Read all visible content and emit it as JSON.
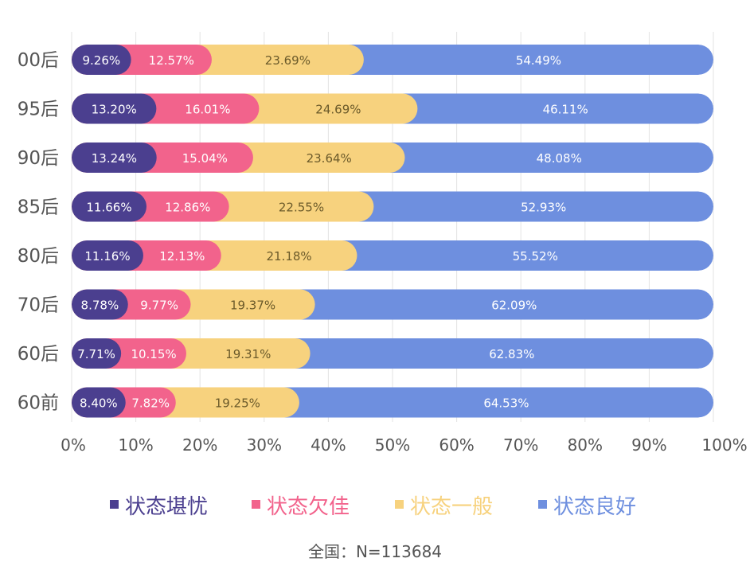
{
  "chart_data": {
    "type": "bar",
    "orientation": "horizontal",
    "stacked": true,
    "percent_stacked": true,
    "categories": [
      "00后",
      "95后",
      "90后",
      "85后",
      "80后",
      "70后",
      "60后",
      "60前"
    ],
    "series": [
      {
        "name": "状态堪忧",
        "color": "#4b3f8f",
        "values": [
          9.26,
          13.2,
          13.24,
          11.66,
          11.16,
          8.78,
          7.71,
          8.4
        ],
        "labels": [
          "9.26%",
          "13.20%",
          "13.24%",
          "11.66%",
          "11.16%",
          "8.78%",
          "7.71%",
          "8.40%"
        ]
      },
      {
        "name": "状态欠佳",
        "color": "#f2638c",
        "values": [
          12.57,
          16.01,
          15.04,
          12.86,
          12.13,
          9.77,
          10.15,
          7.82
        ],
        "labels": [
          "12.57%",
          "16.01%",
          "15.04%",
          "12.86%",
          "12.13%",
          "9.77%",
          "10.15%",
          "7.82%"
        ]
      },
      {
        "name": "状态一般",
        "color": "#f7d27e",
        "values": [
          23.69,
          24.69,
          23.64,
          22.55,
          21.18,
          19.37,
          19.31,
          19.25
        ],
        "labels": [
          "23.69%",
          "24.69%",
          "23.64%",
          "22.55%",
          "21.18%",
          "19.37%",
          "19.31%",
          "19.25%"
        ]
      },
      {
        "name": "状态良好",
        "color": "#6e8fdf",
        "values": [
          54.49,
          46.11,
          48.08,
          52.93,
          55.52,
          62.09,
          62.83,
          64.53
        ],
        "labels": [
          "54.49%",
          "46.11%",
          "48.08%",
          "52.93%",
          "55.52%",
          "62.09%",
          "62.83%",
          "64.53%"
        ]
      }
    ],
    "xlim": [
      0,
      100
    ],
    "x_ticks": [
      "0%",
      "10%",
      "20%",
      "30%",
      "40%",
      "50%",
      "60%",
      "70%",
      "80%",
      "90%",
      "100%"
    ],
    "grid": true,
    "legend_position": "bottom",
    "footnote": "全国：N=113684",
    "label_colors": {
      "状态堪忧": "#ffffff",
      "状态欠佳": "#ffffff",
      "状态一般": "#6b5a2a",
      "状态良好": "#ffffff"
    },
    "axis_text_color": "#555555",
    "grid_color": "#e3e3e3",
    "footnote_color": "#555555"
  }
}
